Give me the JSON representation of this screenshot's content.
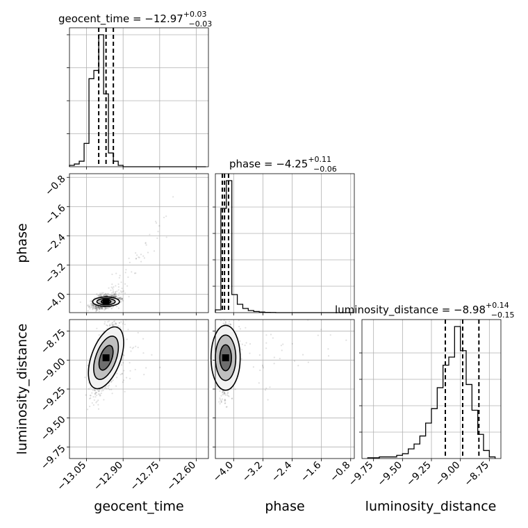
{
  "chart_data": {
    "type": "corner",
    "parameters": [
      {
        "name": "geocent_time",
        "label": "geocent_time",
        "ticks": [
          -13.05,
          -12.9,
          -12.75,
          -12.6
        ],
        "tick_labels": [
          "−13.05",
          "−12.90",
          "−12.75",
          "−12.60"
        ],
        "xlim": [
          -13.12,
          -12.55
        ],
        "title_main": "geocent_time = −12.97",
        "title_sup": "+0.03",
        "title_sub": "−0.03",
        "median": -12.97,
        "quantile_lines": [
          -13.0,
          -12.97,
          -12.94
        ],
        "hist_edges": [
          -13.12,
          -13.1,
          -13.08,
          -13.06,
          -13.04,
          -13.02,
          -13.0,
          -12.98,
          -12.96,
          -12.94,
          -12.92,
          -12.9,
          -12.88,
          -12.86,
          -12.84,
          -12.82,
          -12.8,
          -12.78,
          -12.76,
          -12.74,
          -12.72,
          -12.7,
          -12.68,
          -12.66,
          -12.64,
          -12.62,
          -12.6,
          -12.58,
          -12.56
        ],
        "hist_counts": [
          0.01,
          0.02,
          0.04,
          0.17,
          0.64,
          0.7,
          0.96,
          0.53,
          0.1,
          0.04,
          0.01,
          0,
          0,
          0,
          0,
          0,
          0,
          0,
          0,
          0,
          0,
          0,
          0,
          0,
          0,
          0,
          0,
          0
        ]
      },
      {
        "name": "phase",
        "label": "phase",
        "ticks": [
          -4.0,
          -3.2,
          -2.4,
          -1.6,
          -0.8
        ],
        "tick_labels": [
          "−4.0",
          "−3.2",
          "−2.4",
          "−1.6",
          "−0.8"
        ],
        "xlim": [
          -4.5,
          -0.7
        ],
        "title_main": "phase = −4.25",
        "title_sup": "+0.11",
        "title_sub": "−0.06",
        "median": -4.25,
        "quantile_lines": [
          -4.31,
          -4.25,
          -4.14
        ],
        "hist_edges": [
          -4.5,
          -4.35,
          -4.2,
          -4.05,
          -3.9,
          -3.75,
          -3.6,
          -3.45,
          -3.3,
          -3.15,
          -3.0,
          -2.85,
          -2.7,
          -2.55,
          -2.4,
          -2.25,
          -2.1,
          -1.95,
          -1.8,
          -1.65,
          -1.5,
          -1.35,
          -1.2,
          -1.05,
          -0.9,
          -0.75
        ],
        "hist_counts": [
          0.02,
          0.75,
          0.95,
          0.13,
          0.06,
          0.03,
          0.015,
          0.008,
          0.004,
          0.002,
          0.001,
          0,
          0,
          0,
          0,
          0,
          0,
          0,
          0,
          0,
          0,
          0,
          0,
          0,
          0
        ]
      },
      {
        "name": "luminosity_distance",
        "label": "luminosity_distance",
        "ticks": [
          -9.75,
          -9.5,
          -9.25,
          -9.0,
          -8.75
        ],
        "tick_labels": [
          "−9.75",
          "−9.50",
          "−9.25",
          "−9.00",
          "−8.75"
        ],
        "xlim": [
          -9.85,
          -8.65
        ],
        "title_main": "luminosity_distance = −8.98",
        "title_sup": "+0.14",
        "title_sub": "−0.15",
        "median": -8.98,
        "quantile_lines": [
          -9.13,
          -8.98,
          -8.84
        ],
        "hist_edges": [
          -9.8,
          -9.75,
          -9.7,
          -9.65,
          -9.6,
          -9.55,
          -9.5,
          -9.45,
          -9.4,
          -9.35,
          -9.3,
          -9.25,
          -9.2,
          -9.15,
          -9.1,
          -9.05,
          -9.0,
          -8.95,
          -8.9,
          -8.85,
          -8.8,
          -8.75,
          -8.7
        ],
        "hist_counts": [
          0.005,
          0.005,
          0.01,
          0.01,
          0.01,
          0.02,
          0.03,
          0.06,
          0.09,
          0.14,
          0.22,
          0.31,
          0.44,
          0.58,
          0.63,
          0.82,
          0.67,
          0.46,
          0.3,
          0.15,
          0.05,
          0.01
        ]
      }
    ],
    "contour_levels": [
      0.39,
      0.86,
      1.0
    ]
  }
}
